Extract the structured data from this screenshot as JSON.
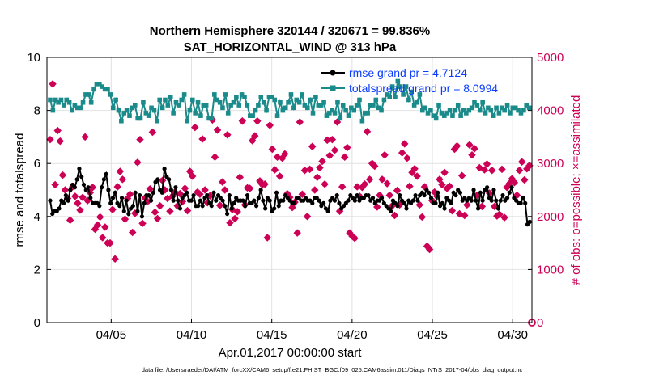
{
  "chart_data": {
    "type": "line",
    "title_line1": "Northern Hemisphere 320144 / 320671 = 99.836%",
    "title_line2": "SAT_HORIZONTAL_WIND @ 313 hPa",
    "xlabel": "Apr.01,2017 00:00:00 start",
    "ylabel_left": "rmse and totalspread",
    "ylabel_right": "# of obs: o=possible; ×=assimilated",
    "footnote": "data file: /Users/raeder/DAI/ATM_forcXX/CAM6_setup/f.e21.FHIST_BGC.f09_025.CAM6assim.011/Diags_NTrS_2017-04/obs_diag_output.nc",
    "xlim": [
      1.0,
      31.2
    ],
    "ylim_left": [
      0,
      10
    ],
    "ylim_right": [
      0,
      5000
    ],
    "yticks_left": [
      "0",
      "2",
      "4",
      "6",
      "8",
      "10"
    ],
    "yticks_right": [
      "0",
      "1000",
      "2000",
      "3000",
      "4000",
      "5000"
    ],
    "xticks": [
      {
        "day": 5,
        "label": "04/05"
      },
      {
        "day": 10,
        "label": "04/10"
      },
      {
        "day": 15,
        "label": "04/15"
      },
      {
        "day": 20,
        "label": "04/20"
      },
      {
        "day": 25,
        "label": "04/25"
      },
      {
        "day": 30,
        "label": "04/30"
      }
    ],
    "grid": true,
    "legend": [
      {
        "label": "rmse grand pr = 4.7124",
        "color": "#000000"
      },
      {
        "label": "totalspread grand pr = 8.0994",
        "color": "#1a8a8a"
      }
    ],
    "series": [
      {
        "name": "rmse",
        "color": "#000000",
        "axis": "left",
        "values": [
          4.6,
          4.1,
          4.2,
          4.2,
          4.3,
          4.6,
          4.5,
          4.8,
          4.6,
          5.0,
          5.2,
          5.1,
          5.4,
          5.8,
          5.5,
          5.2,
          5.0,
          5.1,
          4.7,
          4.5,
          4.5,
          4.5,
          4.4,
          5.1,
          5.4,
          5.6,
          5.0,
          4.5,
          4.7,
          4.9,
          4.5,
          4.4,
          4.7,
          4.2,
          4.6,
          4.1,
          4.3,
          4.4,
          4.9,
          4.2,
          4.8,
          4.0,
          4.5,
          4.8,
          4.8,
          4.6,
          4.9,
          5.3,
          5.4,
          5.0,
          4.9,
          5.8,
          5.5,
          5.4,
          5.0,
          4.6,
          5.1,
          4.6,
          4.3,
          4.7,
          4.8,
          4.9,
          4.6,
          4.6,
          4.8,
          4.4,
          4.4,
          4.6,
          4.4,
          4.7,
          4.8,
          4.5,
          4.4,
          4.9,
          4.6,
          4.8,
          4.7,
          4.6,
          4.4,
          4.1,
          4.8,
          4.3,
          4.5,
          4.7,
          4.6,
          4.6,
          4.6,
          4.4,
          4.8,
          4.5,
          4.5,
          4.6,
          4.4,
          4.7,
          5.0,
          4.6,
          4.3,
          4.7,
          4.6,
          4.2,
          4.3,
          4.9,
          4.4,
          4.6,
          4.6,
          4.8,
          4.7,
          4.6,
          4.5,
          4.5,
          4.7,
          4.7,
          4.6,
          4.6,
          4.7,
          4.6,
          4.6,
          4.5,
          4.7,
          4.7,
          4.6,
          4.4,
          4.5,
          4.3,
          4.2,
          4.6,
          4.7,
          4.6,
          4.8,
          4.5,
          4.3,
          4.4,
          4.5,
          4.6,
          4.8,
          4.7,
          4.6,
          4.8,
          4.6,
          4.7,
          4.7,
          4.8,
          4.8,
          4.6,
          4.7,
          4.5,
          4.6,
          4.6,
          4.7,
          4.5,
          4.4,
          4.3,
          4.2,
          4.6,
          4.5,
          4.4,
          4.8,
          4.6,
          4.5,
          4.3,
          4.6,
          4.5,
          4.6,
          4.8,
          4.6,
          4.8,
          4.9,
          4.8,
          5.0,
          4.9,
          4.7,
          4.5,
          4.5,
          4.9,
          4.4,
          4.5,
          4.3,
          4.7,
          4.6,
          4.5,
          4.9,
          4.8,
          5.0,
          4.9,
          4.6,
          4.7,
          4.6,
          4.7,
          4.6,
          5.0,
          4.6,
          4.3,
          4.9,
          4.6,
          5.0,
          5.1,
          4.7,
          4.6,
          5.0,
          4.6,
          4.3,
          4.6,
          4.8,
          4.6,
          4.7,
          4.9,
          5.1,
          4.7,
          4.6,
          4.5,
          4.5,
          4.7,
          4.5,
          3.7,
          3.8
        ]
      },
      {
        "name": "totalspread",
        "color": "#1a8a8a",
        "axis": "left",
        "values": [
          8.4,
          8.0,
          8.4,
          8.3,
          8.4,
          8.2,
          8.4,
          8.3,
          8.0,
          8.2,
          8.1,
          8.1,
          8.3,
          8.6,
          8.6,
          8.3,
          8.8,
          9.0,
          9.0,
          8.9,
          8.8,
          8.8,
          8.6,
          8.1,
          8.4,
          8.0,
          7.6,
          7.9,
          8.0,
          7.8,
          8.1,
          8.2,
          7.7,
          7.7,
          8.3,
          7.9,
          7.8,
          8.1,
          8.0,
          7.6,
          8.4,
          8.1,
          8.4,
          8.2,
          8.5,
          7.9,
          8.3,
          8.2,
          8.4,
          8.6,
          7.6,
          8.0,
          8.4,
          7.9,
          8.3,
          7.8,
          8.2,
          8.2,
          7.7,
          7.7,
          8.6,
          8.4,
          8.3,
          8.1,
          8.6,
          7.9,
          8.2,
          8.3,
          8.5,
          8.2,
          8.6,
          8.5,
          8.2,
          7.8,
          7.8,
          8.0,
          8.2,
          8.5,
          8.3,
          8.0,
          8.5,
          8.5,
          8.4,
          7.8,
          8.3,
          8.0,
          8.1,
          8.3,
          8.6,
          8.1,
          8.4,
          8.3,
          8.6,
          8.2,
          8.1,
          8.4,
          7.9,
          8.5,
          8.2,
          8.2,
          8.3,
          7.8,
          7.9,
          8.0,
          7.9,
          8.3,
          7.7,
          8.2,
          8.0,
          7.8,
          8.1,
          8.0,
          8.2,
          8.4,
          7.6,
          7.9,
          7.9,
          8.2,
          8.2,
          8.4,
          8.1,
          8.0,
          8.4,
          8.6,
          8.5,
          8.9,
          8.5,
          9.1,
          8.9,
          8.6,
          8.9,
          8.4,
          8.7,
          8.2,
          8.3,
          8.6,
          8.0,
          8.1,
          7.9,
          8.0,
          7.8,
          7.7,
          8.2,
          7.9,
          7.8,
          7.9,
          8.0,
          7.8,
          8.0,
          8.2,
          7.8,
          8.0,
          7.9,
          8.0,
          8.1,
          8.3,
          8.2,
          8.0,
          8.3,
          7.9,
          8.1,
          8.0,
          7.8,
          8.1,
          7.9,
          8.1,
          8.0,
          8.2,
          7.9,
          8.1,
          8.1,
          8.0,
          7.9,
          8.0,
          8.2,
          8.1
        ]
      },
      {
        "name": "obs_possible",
        "color": "#cc0055",
        "axis": "right",
        "values": [
          3450,
          4500,
          2600,
          3620,
          3420,
          2780,
          2500,
          2340,
          1930,
          2560,
          2380,
          2250,
          2120,
          2360,
          3500,
          2300,
          2450,
          2550,
          1760,
          1840,
          1990,
          1600,
          1800,
          1500,
          1500,
          2130,
          1200,
          2560,
          2850,
          2700,
          1950,
          2340,
          2420,
          1700,
          2060,
          3020,
          3450,
          1870,
          2350,
          2280,
          2520,
          3590,
          2080,
          1960,
          2200,
          2680,
          2500,
          2340,
          2100,
          2380,
          2460,
          2200,
          2430,
          2280,
          2530,
          2110,
          2850,
          2760,
          3680,
          2460,
          2420,
          3460,
          2500,
          2260,
          2390,
          3820,
          3120,
          3630,
          2210,
          2650,
          2500,
          3540,
          1880,
          2130,
          1960,
          2090,
          2740,
          3800,
          2220,
          2540,
          2530,
          3430,
          3520,
          3800,
          2670,
          2600,
          2610,
          1600,
          3720,
          3270,
          2880,
          3120,
          2760,
          3100,
          3180,
          2430,
          2360,
          2170,
          2270,
          1690,
          3780,
          2420,
          2870,
          2000,
          2890,
          3320,
          2500,
          2740,
          2920,
          3040,
          2610,
          3440,
          3150,
          3450,
          3250,
          3780,
          2100,
          2560,
          3120,
          3300,
          1690,
          1630,
          1590,
          2560,
          2380,
          2550,
          2610,
          3600,
          2700,
          3000,
          2950,
          2180,
          2400,
          2700,
          3160,
          2620,
          2400,
          2200,
          2020,
          2490,
          2220,
          3200,
          3370,
          3100,
          2570,
          2830,
          2900,
          2760,
          2220,
          1990,
          2560,
          1440,
          1380,
          2300,
          2460,
          2380,
          2700,
          2600,
          2830,
          2530,
          2570,
          2110,
          3270,
          3330,
          2050,
          2770,
          2020,
          2220,
          3350,
          3160,
          3280,
          2400,
          2920,
          2190,
          2880,
          2990,
          2440,
          2870,
          2190,
          2010,
          2040,
          2890,
          1980,
          2550,
          2620,
          2710,
          2640,
          2400,
          2870,
          3030,
          2690,
          2900,
          2960
        ]
      }
    ]
  }
}
